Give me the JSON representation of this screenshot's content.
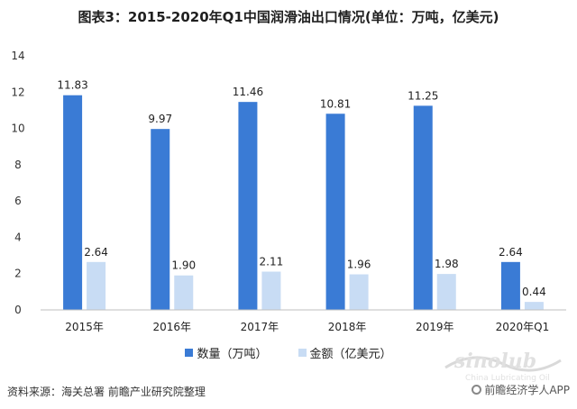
{
  "chart_data": {
    "type": "bar",
    "title": "图表3：2015-2020年Q1中国润滑油出口情况(单位：万吨，亿美元)",
    "categories": [
      "2015年",
      "2016年",
      "2017年",
      "2018年",
      "2019年",
      "2020年Q1"
    ],
    "series": [
      {
        "name": "数量（万吨）",
        "values": [
          11.83,
          9.97,
          11.46,
          10.81,
          11.25,
          2.64
        ],
        "color": "#3a7bd5"
      },
      {
        "name": "金额（亿美元）",
        "values": [
          2.64,
          1.9,
          2.11,
          1.96,
          1.98,
          0.44
        ],
        "color": "#c8dcf4"
      }
    ],
    "value_labels": [
      [
        "11.83",
        "9.97",
        "11.46",
        "10.81",
        "11.25",
        "2.64"
      ],
      [
        "2.64",
        "1.90",
        "2.11",
        "1.96",
        "1.98",
        "0.44"
      ]
    ],
    "yticks": [
      0,
      2,
      4,
      6,
      8,
      10,
      12,
      14
    ],
    "ylim": [
      0,
      14
    ],
    "grid": false,
    "legend_position": "bottom"
  },
  "footer": {
    "source": "资料来源：海关总署 前瞻产业研究院整理",
    "app": "前瞻经济学人APP"
  },
  "watermark": {
    "site": "sinolub",
    "domain": "China Lubricating Oil"
  }
}
